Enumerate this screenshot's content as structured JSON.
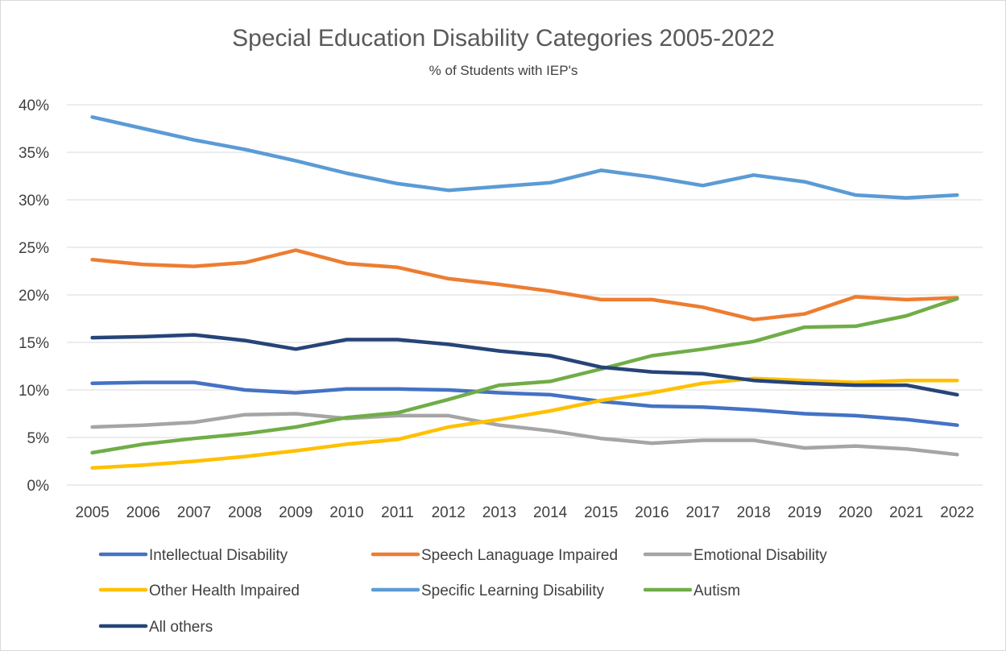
{
  "chart_data": {
    "type": "line",
    "title": "Special Education Disability Categories 2005-2022",
    "subtitle": "% of  Students with IEP's",
    "xlabel": "",
    "ylabel": "",
    "ylim": [
      0,
      40
    ],
    "y_ticks": [
      "0%",
      "5%",
      "10%",
      "15%",
      "20%",
      "25%",
      "30%",
      "35%",
      "40%"
    ],
    "grid": true,
    "legend_position": "bottom",
    "categories": [
      "2005",
      "2006",
      "2007",
      "2008",
      "2009",
      "2010",
      "2011",
      "2012",
      "2013",
      "2014",
      "2015",
      "2016",
      "2017",
      "2018",
      "2019",
      "2020",
      "2021",
      "2022"
    ],
    "series": [
      {
        "name": "Intellectual Disability",
        "color": "#4472C4",
        "values": [
          10.7,
          10.8,
          10.8,
          10.0,
          9.7,
          10.1,
          10.1,
          10.0,
          9.7,
          9.5,
          8.8,
          8.3,
          8.2,
          7.9,
          7.5,
          7.3,
          6.9,
          6.3
        ]
      },
      {
        "name": "Speech Lanaguage Impaired",
        "color": "#ED7D31",
        "values": [
          23.7,
          23.2,
          23.0,
          23.4,
          24.7,
          23.3,
          22.9,
          21.7,
          21.1,
          20.4,
          19.5,
          19.5,
          18.7,
          17.4,
          18.0,
          19.8,
          19.5,
          19.7
        ]
      },
      {
        "name": "Emotional Disability",
        "color": "#A5A5A5",
        "values": [
          6.1,
          6.3,
          6.6,
          7.4,
          7.5,
          7.0,
          7.3,
          7.3,
          6.3,
          5.7,
          4.9,
          4.4,
          4.7,
          4.7,
          3.9,
          4.1,
          3.8,
          3.2
        ]
      },
      {
        "name": "Other Health Impaired",
        "color": "#FFC000",
        "values": [
          1.8,
          2.1,
          2.5,
          3.0,
          3.6,
          4.3,
          4.8,
          6.1,
          6.9,
          7.8,
          8.9,
          9.7,
          10.7,
          11.2,
          11.0,
          10.8,
          11.0,
          11.0
        ]
      },
      {
        "name": "Specific Learning Disability",
        "color": "#5B9BD5",
        "values": [
          38.7,
          37.5,
          36.3,
          35.3,
          34.1,
          32.8,
          31.7,
          31.0,
          31.4,
          31.8,
          33.1,
          32.4,
          31.5,
          32.6,
          31.9,
          30.5,
          30.2,
          30.5
        ]
      },
      {
        "name": "Autism",
        "color": "#70AD47",
        "values": [
          3.4,
          4.3,
          4.9,
          5.4,
          6.1,
          7.1,
          7.6,
          9.0,
          10.5,
          10.9,
          12.2,
          13.6,
          14.3,
          15.1,
          16.6,
          16.7,
          17.8,
          19.6
        ]
      },
      {
        "name": "All others",
        "color": "#264478",
        "values": [
          15.5,
          15.6,
          15.8,
          15.2,
          14.3,
          15.3,
          15.3,
          14.8,
          14.1,
          13.6,
          12.4,
          11.9,
          11.7,
          11.0,
          10.7,
          10.5,
          10.5,
          9.5
        ]
      }
    ]
  }
}
